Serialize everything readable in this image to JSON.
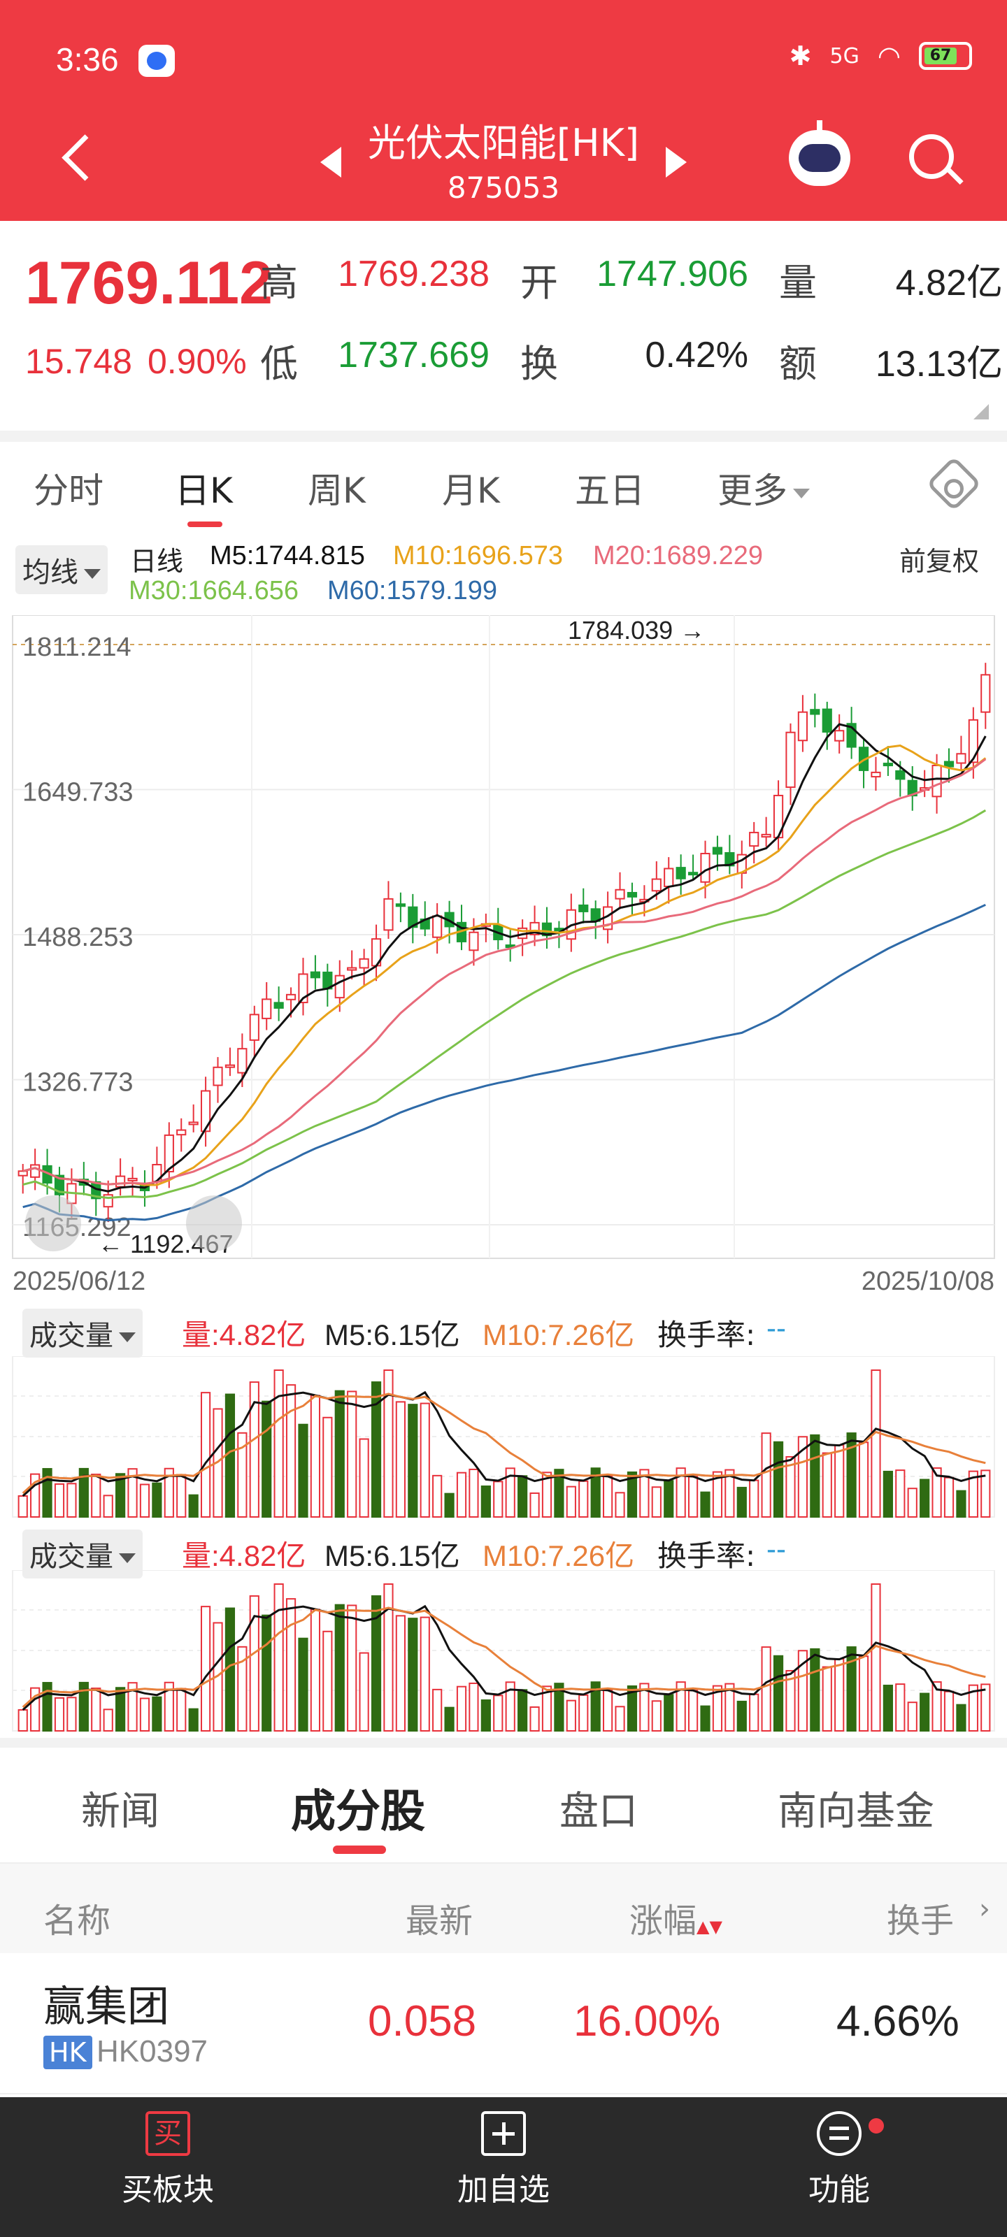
{
  "status_bar": {
    "time": "3:36",
    "network": "5G",
    "battery": "67"
  },
  "header": {
    "title": "光伏太阳能[HK]",
    "code": "875053"
  },
  "quote": {
    "price": "1769.112",
    "change": "15.748",
    "change_pct": "0.90%",
    "high_label": "高",
    "high": "1769.238",
    "open_label": "开",
    "open": "1747.906",
    "vol_label": "量",
    "vol": "4.82亿",
    "low_label": "低",
    "low": "1737.669",
    "turnover_label": "换",
    "turnover": "0.42%",
    "amount_label": "额",
    "amount": "13.13亿"
  },
  "period_tabs": [
    "分时",
    "日K",
    "周K",
    "月K",
    "五日",
    "更多"
  ],
  "ma_legend": {
    "selector": "均线",
    "period": "日线",
    "m5": "M5:1744.815",
    "m10": "M10:1696.573",
    "m20": "M20:1689.229",
    "m30": "M30:1664.656",
    "m60": "M60:1579.199",
    "adjust": "前复权"
  },
  "kline": {
    "y_ticks": [
      "1811.214",
      "1649.733",
      "1488.253",
      "1326.773",
      "1165.292"
    ],
    "max_label": "1784.039",
    "min_label": "1192.467",
    "start_date": "2025/06/12",
    "end_date": "2025/10/08"
  },
  "volume_panels": [
    {
      "selector": "成交量",
      "vol": "量:4.82亿",
      "m5": "M5:6.15亿",
      "m10": "M10:7.26亿",
      "turnover": "换手率:",
      "turnover_val": "--"
    },
    {
      "selector": "成交量",
      "vol": "量:4.82亿",
      "m5": "M5:6.15亿",
      "m10": "M10:7.26亿",
      "turnover": "换手率:",
      "turnover_val": "--"
    }
  ],
  "section_tabs": [
    "新闻",
    "成分股",
    "盘口",
    "南向基金"
  ],
  "table": {
    "headers": [
      "名称",
      "最新",
      "涨幅",
      "换手"
    ],
    "rows": [
      {
        "name": "赢集团",
        "market": "HK",
        "code": "HK0397",
        "latest": "0.058",
        "change": "16.00%",
        "turnover": "4.66%"
      }
    ]
  },
  "bottom_bar": {
    "buy_icon": "买",
    "buy": "买板块",
    "add": "加自选",
    "func": "功能"
  },
  "colors": {
    "brand": "#ee3a43",
    "up": "#e8313b",
    "down": "#1a9c35",
    "m5": "#111111",
    "m10": "#e8a21a",
    "m20": "#e86a7a",
    "m30": "#7cc24a",
    "m60": "#2e6aa8"
  }
}
